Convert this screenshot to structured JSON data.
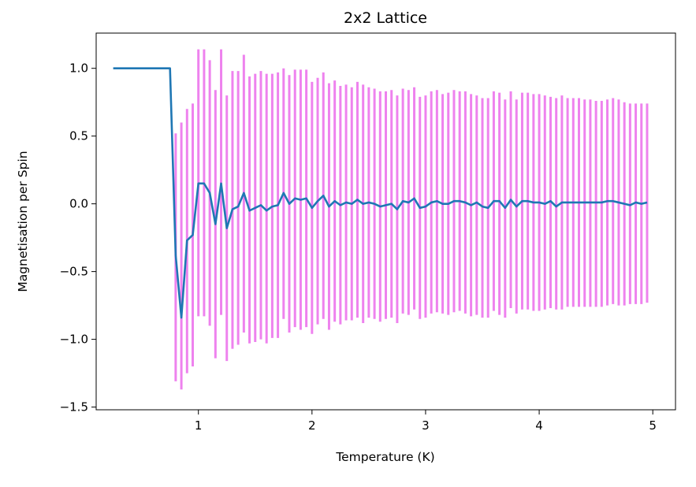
{
  "chart_data": {
    "type": "line",
    "title": "2x2 Lattice",
    "xlabel": "Temperature (K)",
    "ylabel": "Magnetisation per Spin",
    "xlim": [
      0.1,
      5.2
    ],
    "ylim": [
      -1.52,
      1.26
    ],
    "xticks": [
      1,
      2,
      3,
      4,
      5
    ],
    "yticks": [
      -1.5,
      -1.0,
      -0.5,
      0.0,
      0.5,
      1.0
    ],
    "xtick_labels": [
      "1",
      "2",
      "3",
      "4",
      "5"
    ],
    "ytick_labels": [
      "−1.5",
      "−1.0",
      "−0.5",
      "0.0",
      "0.5",
      "1.0"
    ],
    "grid": false,
    "series": [
      {
        "role": "line",
        "color": "#1f77b4",
        "x": [
          0.25,
          0.3,
          0.35,
          0.4,
          0.45,
          0.5,
          0.55,
          0.6,
          0.65,
          0.7,
          0.75,
          0.8,
          0.85,
          0.9,
          0.95,
          1.0,
          1.05,
          1.1,
          1.15,
          1.2,
          1.25,
          1.3,
          1.35,
          1.4,
          1.45,
          1.5,
          1.55,
          1.6,
          1.65,
          1.7,
          1.75,
          1.8,
          1.85,
          1.9,
          1.95,
          2.0,
          2.05,
          2.1,
          2.15,
          2.2,
          2.25,
          2.3,
          2.35,
          2.4,
          2.45,
          2.5,
          2.55,
          2.6,
          2.65,
          2.7,
          2.75,
          2.8,
          2.85,
          2.9,
          2.95,
          3.0,
          3.05,
          3.1,
          3.15,
          3.2,
          3.25,
          3.3,
          3.35,
          3.4,
          3.45,
          3.5,
          3.55,
          3.6,
          3.65,
          3.7,
          3.75,
          3.8,
          3.85,
          3.9,
          3.95,
          4.0,
          4.05,
          4.1,
          4.15,
          4.2,
          4.25,
          4.3,
          4.35,
          4.4,
          4.45,
          4.5,
          4.55,
          4.6,
          4.65,
          4.7,
          4.75,
          4.8,
          4.85,
          4.9,
          4.95
        ],
        "y": [
          1.0,
          1.0,
          1.0,
          1.0,
          1.0,
          1.0,
          1.0,
          1.0,
          1.0,
          1.0,
          1.0,
          -0.38,
          -0.84,
          -0.27,
          -0.23,
          0.15,
          0.15,
          0.08,
          -0.15,
          0.15,
          -0.18,
          -0.04,
          -0.02,
          0.08,
          -0.05,
          -0.03,
          -0.01,
          -0.05,
          -0.02,
          -0.01,
          0.08,
          0.0,
          0.04,
          0.03,
          0.04,
          -0.03,
          0.02,
          0.06,
          -0.02,
          0.02,
          -0.01,
          0.01,
          0.0,
          0.03,
          0.0,
          0.01,
          0.0,
          -0.02,
          -0.01,
          0.0,
          -0.04,
          0.02,
          0.01,
          0.04,
          -0.03,
          -0.02,
          0.01,
          0.02,
          0.0,
          0.0,
          0.02,
          0.02,
          0.01,
          -0.01,
          0.01,
          -0.02,
          -0.03,
          0.02,
          0.02,
          -0.03,
          0.03,
          -0.02,
          0.02,
          0.02,
          0.01,
          0.01,
          0.0,
          0.02,
          -0.02,
          0.01,
          0.01,
          0.01,
          0.01,
          0.01,
          0.01,
          0.01,
          0.01,
          0.02,
          0.02,
          0.01,
          0.0,
          -0.01,
          0.01,
          0.0,
          0.01
        ]
      },
      {
        "role": "error_bars",
        "color": "#ee82ee",
        "x": [
          0.8,
          0.85,
          0.9,
          0.95,
          1.0,
          1.05,
          1.1,
          1.15,
          1.2,
          1.25,
          1.3,
          1.35,
          1.4,
          1.45,
          1.5,
          1.55,
          1.6,
          1.65,
          1.7,
          1.75,
          1.8,
          1.85,
          1.9,
          1.95,
          2.0,
          2.05,
          2.1,
          2.15,
          2.2,
          2.25,
          2.3,
          2.35,
          2.4,
          2.45,
          2.5,
          2.55,
          2.6,
          2.65,
          2.7,
          2.75,
          2.8,
          2.85,
          2.9,
          2.95,
          3.0,
          3.05,
          3.1,
          3.15,
          3.2,
          3.25,
          3.3,
          3.35,
          3.4,
          3.45,
          3.5,
          3.55,
          3.6,
          3.65,
          3.7,
          3.75,
          3.8,
          3.85,
          3.9,
          3.95,
          4.0,
          4.05,
          4.1,
          4.15,
          4.2,
          4.25,
          4.3,
          4.35,
          4.4,
          4.45,
          4.5,
          4.55,
          4.6,
          4.65,
          4.7,
          4.75,
          4.8,
          4.85,
          4.9,
          4.95
        ],
        "low": [
          -1.31,
          -1.37,
          -1.25,
          -1.2,
          -0.83,
          -0.83,
          -0.9,
          -1.14,
          -0.82,
          -1.16,
          -1.07,
          -1.04,
          -0.95,
          -1.03,
          -1.02,
          -1.0,
          -1.03,
          -0.99,
          -0.99,
          -0.85,
          -0.95,
          -0.91,
          -0.93,
          -0.91,
          -0.96,
          -0.89,
          -0.85,
          -0.93,
          -0.87,
          -0.89,
          -0.86,
          -0.86,
          -0.84,
          -0.88,
          -0.84,
          -0.85,
          -0.87,
          -0.85,
          -0.84,
          -0.88,
          -0.81,
          -0.82,
          -0.78,
          -0.85,
          -0.84,
          -0.81,
          -0.8,
          -0.81,
          -0.82,
          -0.8,
          -0.79,
          -0.81,
          -0.83,
          -0.82,
          -0.84,
          -0.84,
          -0.79,
          -0.82,
          -0.84,
          -0.77,
          -0.81,
          -0.78,
          -0.78,
          -0.79,
          -0.79,
          -0.78,
          -0.77,
          -0.78,
          -0.78,
          -0.76,
          -0.76,
          -0.76,
          -0.76,
          -0.76,
          -0.76,
          -0.76,
          -0.75,
          -0.74,
          -0.75,
          -0.75,
          -0.74,
          -0.74,
          -0.74,
          -0.73
        ],
        "high": [
          0.52,
          0.6,
          0.7,
          0.74,
          1.14,
          1.14,
          1.06,
          0.84,
          1.14,
          0.8,
          0.98,
          0.98,
          1.1,
          0.94,
          0.96,
          0.98,
          0.96,
          0.96,
          0.97,
          1.0,
          0.95,
          0.99,
          0.99,
          0.99,
          0.9,
          0.93,
          0.97,
          0.89,
          0.91,
          0.87,
          0.88,
          0.86,
          0.9,
          0.88,
          0.86,
          0.85,
          0.83,
          0.83,
          0.84,
          0.8,
          0.85,
          0.84,
          0.86,
          0.79,
          0.8,
          0.83,
          0.84,
          0.81,
          0.82,
          0.84,
          0.83,
          0.83,
          0.81,
          0.8,
          0.78,
          0.78,
          0.83,
          0.82,
          0.77,
          0.83,
          0.77,
          0.82,
          0.82,
          0.81,
          0.81,
          0.8,
          0.79,
          0.78,
          0.8,
          0.78,
          0.78,
          0.78,
          0.77,
          0.77,
          0.76,
          0.76,
          0.77,
          0.78,
          0.77,
          0.75,
          0.74,
          0.74,
          0.74,
          0.74
        ]
      }
    ]
  }
}
